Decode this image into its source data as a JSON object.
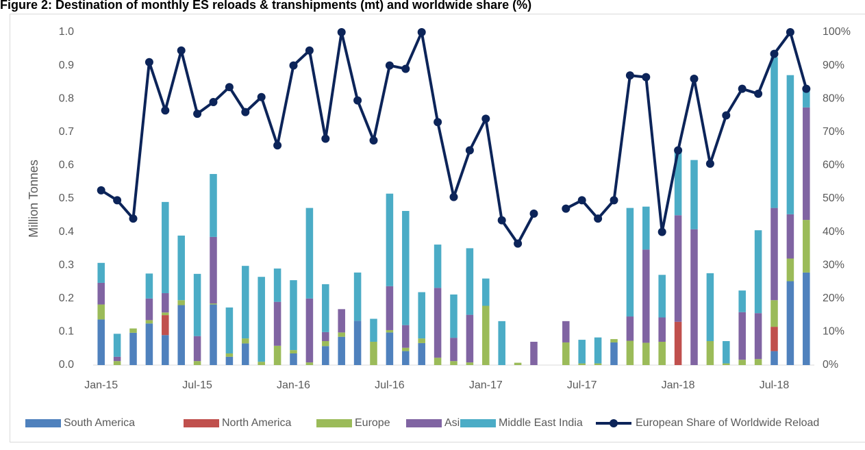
{
  "chart_data": {
    "type": "bar",
    "stacked": true,
    "title": "Figure 2: Destination of monthly ES reloads & transhipments (mt) and worldwide share (%)",
    "y_label": "Million Tonnes",
    "categories": [
      "Jan-15",
      null,
      null,
      null,
      null,
      null,
      "Jul-15",
      null,
      null,
      null,
      null,
      null,
      "Jan-16",
      null,
      null,
      null,
      null,
      null,
      "Jul-16",
      null,
      null,
      null,
      null,
      null,
      "Jan-17",
      null,
      null,
      null,
      null,
      null,
      "Jul-17",
      null,
      null,
      null,
      null,
      null,
      "Jan-18",
      null,
      null,
      null,
      null,
      null,
      "Jul-18",
      null,
      null
    ],
    "ylim": [
      0,
      1.0
    ],
    "yticks": [
      {
        "value": 0,
        "label": "0.0"
      },
      {
        "value": 0.1,
        "label": "0.1"
      },
      {
        "value": 0.2,
        "label": "0.2"
      },
      {
        "value": 0.3,
        "label": "0.3"
      },
      {
        "value": 0.4,
        "label": "0.4"
      },
      {
        "value": 0.5,
        "label": "0.5"
      },
      {
        "value": 0.6,
        "label": "0.6"
      },
      {
        "value": 0.7,
        "label": "0.7"
      },
      {
        "value": 0.8,
        "label": "0.8"
      },
      {
        "value": 0.9,
        "label": "0.9"
      },
      {
        "value": 1.0,
        "label": "1.0"
      }
    ],
    "y2lim": [
      0,
      100
    ],
    "y2ticks": [
      {
        "value": 0,
        "label": "0%"
      },
      {
        "value": 10,
        "label": "10%"
      },
      {
        "value": 20,
        "label": "20%"
      },
      {
        "value": 30,
        "label": "30%"
      },
      {
        "value": 40,
        "label": "40%"
      },
      {
        "value": 50,
        "label": "50%"
      },
      {
        "value": 60,
        "label": "60%"
      },
      {
        "value": 70,
        "label": "70%"
      },
      {
        "value": 80,
        "label": "80%"
      },
      {
        "value": 90,
        "label": "90%"
      },
      {
        "value": 100,
        "label": "100%"
      }
    ],
    "legend": "bottom",
    "series": [
      {
        "name": "South America",
        "color": "#4f81bd",
        "values": [
          0.137,
          0,
          0.097,
          0.125,
          0.09,
          0.18,
          0,
          0.182,
          0.025,
          0.065,
          0,
          0,
          0.035,
          0,
          0.057,
          0.085,
          0.133,
          0,
          0.098,
          0.042,
          0.066,
          0,
          0,
          0,
          0,
          0,
          0,
          0,
          0,
          0,
          0,
          0,
          0.068,
          0,
          0,
          0,
          0,
          0,
          0,
          0,
          0,
          0,
          0.042,
          0.252,
          0.278
        ]
      },
      {
        "name": "North America",
        "color": "#c0504d",
        "values": [
          0,
          0,
          0,
          0,
          0.06,
          0,
          0,
          0,
          0,
          0,
          0,
          0,
          0,
          0,
          0,
          0,
          0,
          0,
          0,
          0,
          0,
          0,
          0,
          0,
          0,
          0,
          0,
          0,
          0,
          0,
          0,
          0,
          0,
          0,
          0,
          0,
          0.13,
          0,
          0,
          0,
          0,
          0,
          0.073,
          0,
          0
        ]
      },
      {
        "name": "Europe",
        "color": "#9bbb59",
        "values": [
          0.045,
          0.012,
          0.013,
          0.01,
          0.008,
          0.015,
          0.012,
          0.003,
          0.01,
          0.015,
          0.01,
          0.058,
          0.01,
          0.008,
          0.015,
          0.013,
          0,
          0.07,
          0.007,
          0.01,
          0.014,
          0.022,
          0.012,
          0.008,
          0.178,
          0,
          0.007,
          0,
          0,
          0.068,
          0.005,
          0.005,
          0.01,
          0.073,
          0.067,
          0.07,
          0,
          0,
          0.072,
          0.005,
          0.016,
          0.018,
          0.08,
          0.068,
          0.158
        ]
      },
      {
        "name": "Asia",
        "color": "#8064a2",
        "values": [
          0.065,
          0.013,
          0,
          0.065,
          0.058,
          0,
          0.075,
          0.2,
          0,
          0,
          0,
          0.132,
          0,
          0.192,
          0.027,
          0.07,
          0,
          0,
          0.132,
          0.068,
          0,
          0.21,
          0.07,
          0.143,
          0,
          0,
          0,
          0.07,
          0,
          0.064,
          0,
          0,
          0,
          0.073,
          0.28,
          0.073,
          0.32,
          0.408,
          0,
          0,
          0.143,
          0.138,
          0.277,
          0.133,
          0.338
        ]
      },
      {
        "name": "Middle East India",
        "color": "#4bacc6",
        "values": [
          0.06,
          0.069,
          0,
          0.075,
          0.274,
          0.194,
          0.187,
          0.189,
          0.138,
          0.218,
          0.255,
          0.1,
          0.21,
          0.272,
          0.144,
          0,
          0.145,
          0.069,
          0.278,
          0.343,
          0.139,
          0.13,
          0.13,
          0.2,
          0.082,
          0.132,
          0,
          0,
          0,
          0,
          0.071,
          0.078,
          0,
          0.326,
          0.129,
          0.128,
          0.19,
          0.208,
          0.204,
          0.067,
          0.065,
          0.249,
          0.453,
          0.418,
          0.05
        ]
      },
      {
        "name": "European Share of Worldwide Reload",
        "type": "line",
        "axis": "y2",
        "color": "#0c2459",
        "values": [
          52.5,
          49.5,
          44,
          91,
          76.5,
          94.5,
          75.5,
          79,
          83.5,
          76,
          80.5,
          66,
          90,
          94.5,
          68,
          100,
          79.5,
          67.5,
          90,
          89,
          100,
          73,
          50.5,
          64.5,
          74,
          43.5,
          36.5,
          45.5,
          null,
          47,
          49.5,
          44,
          49.5,
          87,
          86.5,
          40,
          64.5,
          86,
          60.5,
          75,
          83,
          81.5,
          93.5,
          100,
          83
        ]
      }
    ]
  }
}
